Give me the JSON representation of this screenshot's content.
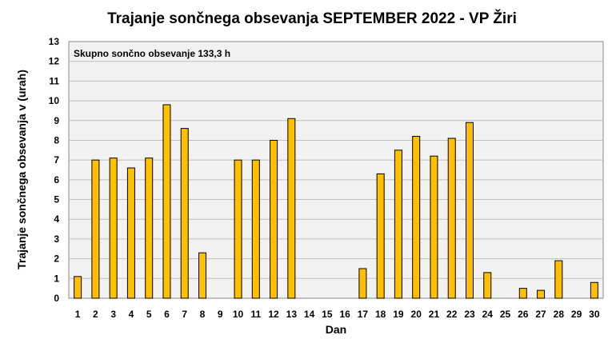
{
  "chart_data": {
    "type": "bar",
    "title": "Trajanje  sončnega  obsevanja  SEPTEMBER 2022 - VP Žiri",
    "xlabel": "Dan",
    "ylabel": "Trajanje  sončnega  obsevanja  v (urah)",
    "annotation": "Skupno sončno obsevanje 133,3 h",
    "categories": [
      "1",
      "2",
      "3",
      "4",
      "5",
      "6",
      "7",
      "8",
      "9",
      "10",
      "11",
      "12",
      "13",
      "14",
      "15",
      "16",
      "17",
      "18",
      "19",
      "20",
      "21",
      "22",
      "23",
      "24",
      "25",
      "26",
      "27",
      "28",
      "29",
      "30"
    ],
    "values": [
      1.1,
      7.0,
      7.1,
      6.6,
      7.1,
      9.8,
      8.6,
      2.3,
      0,
      7.0,
      7.0,
      8.0,
      9.1,
      0,
      0,
      0,
      1.5,
      6.3,
      7.5,
      8.2,
      7.2,
      8.1,
      8.9,
      1.3,
      0,
      0.5,
      0.4,
      1.9,
      0,
      0.8
    ],
    "ylim": [
      0,
      13
    ],
    "yticks": [
      0,
      1,
      2,
      3,
      4,
      5,
      6,
      7,
      8,
      9,
      10,
      11,
      12,
      13
    ],
    "grid": true,
    "bar_color": "#FFC000",
    "bar_edge_color": "#000000",
    "plot_background": "#F2F2F2",
    "grid_color": "#C0C0C0"
  }
}
